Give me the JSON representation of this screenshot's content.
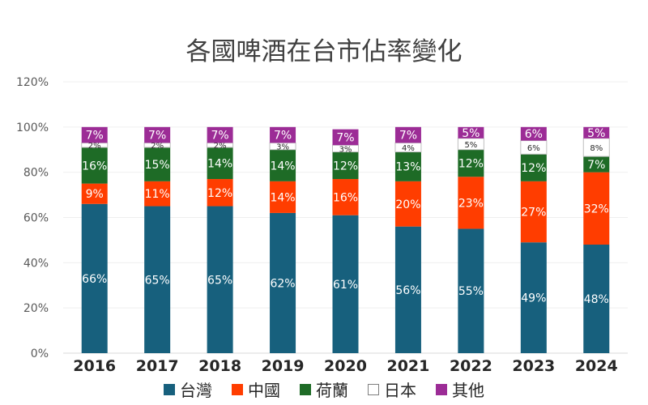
{
  "chart_data": {
    "type": "bar",
    "stacked": true,
    "title": "各國啤酒在台市佔率變化",
    "categories": [
      "2016",
      "2017",
      "2018",
      "2019",
      "2020",
      "2021",
      "2022",
      "2023",
      "2024"
    ],
    "ylim": [
      0,
      120
    ],
    "yticks": [
      "0%",
      "20%",
      "40%",
      "60%",
      "80%",
      "100%",
      "120%"
    ],
    "grid": true,
    "legend_position": "bottom",
    "series": [
      {
        "name": "台灣",
        "color": "#17607d",
        "values": [
          66,
          65,
          65,
          62,
          61,
          56,
          55,
          49,
          48
        ],
        "labels": [
          "66%",
          "65%",
          "65%",
          "62%",
          "61%",
          "56%",
          "55%",
          "49%",
          "48%"
        ]
      },
      {
        "name": "中國",
        "color": "#ff3d00",
        "values": [
          9,
          11,
          12,
          14,
          16,
          20,
          23,
          27,
          32
        ],
        "labels": [
          "9%",
          "11%",
          "12%",
          "14%",
          "16%",
          "20%",
          "23%",
          "27%",
          "32%"
        ]
      },
      {
        "name": "荷蘭",
        "color": "#1e6b26",
        "values": [
          16,
          15,
          14,
          14,
          12,
          13,
          12,
          12,
          7
        ],
        "labels": [
          "16%",
          "15%",
          "14%",
          "14%",
          "12%",
          "13%",
          "12%",
          "12%",
          "7%"
        ]
      },
      {
        "name": "日本",
        "color": "#ffffff",
        "values": [
          2,
          2,
          2,
          3,
          3,
          4,
          5,
          6,
          8
        ],
        "labels": [
          "2%",
          "2%",
          "2%",
          "3%",
          "3%",
          "4%",
          "5%",
          "6%",
          "8%"
        ]
      },
      {
        "name": "其他",
        "color": "#9c2c96",
        "values": [
          7,
          7,
          7,
          7,
          7,
          7,
          5,
          6,
          5
        ],
        "labels": [
          "7%",
          "7%",
          "7%",
          "7%",
          "7%",
          "7%",
          "5%",
          "6%",
          "5%"
        ]
      }
    ]
  }
}
